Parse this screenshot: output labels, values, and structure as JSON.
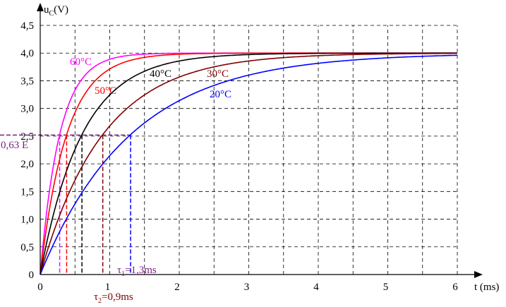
{
  "chart_data": {
    "type": "line",
    "title": "",
    "xlabel": "t (ms)",
    "ylabel": "uC(V)",
    "ylabel_main": "u",
    "ylabel_sub": "C",
    "ylabel_rest": "(V)",
    "xlim": [
      0,
      6
    ],
    "ylim": [
      0,
      4.5
    ],
    "grid": true,
    "x_ticks": [
      0,
      1,
      2,
      3,
      4,
      5,
      6
    ],
    "x_tick_labels": [
      "0",
      "1",
      "2",
      "3",
      "4",
      "5",
      "6"
    ],
    "y_ticks": [
      0,
      0.5,
      1.0,
      1.5,
      2.0,
      2.5,
      3.0,
      3.5,
      4.0,
      4.5
    ],
    "y_tick_labels": [
      "0",
      "0,5",
      "1,0",
      "1,5",
      "2,0",
      "2,5",
      "3,0",
      "3,5",
      "4,0",
      "4,5"
    ],
    "E": 4.0,
    "reference_level": {
      "value": 2.52,
      "label": "0,63 E",
      "color": "#7b2080"
    },
    "series": [
      {
        "name": "60°C",
        "tau": 0.28,
        "color": "#ff00ff",
        "tau_marker_color": "#ff00ff"
      },
      {
        "name": "50°C",
        "tau": 0.38,
        "color": "#ff0000",
        "tau_marker_color": "#ff0000"
      },
      {
        "name": "40°C",
        "tau": 0.6,
        "color": "#000000",
        "tau_marker_color": "#000000"
      },
      {
        "name": "30°C",
        "tau": 0.9,
        "color": "#800000",
        "tau_marker_color": "#800000"
      },
      {
        "name": "20°C",
        "tau": 1.3,
        "color": "#0000ff",
        "tau_marker_color": "#0000ff"
      }
    ],
    "annotations": {
      "tau1": {
        "sym": "τ",
        "sub": "1",
        "rest": "=1,3ms",
        "color": "#7b2080"
      },
      "tau2": {
        "sym": "τ",
        "sub": "2",
        "rest": "=0,9ms",
        "color": "#800000"
      }
    }
  }
}
